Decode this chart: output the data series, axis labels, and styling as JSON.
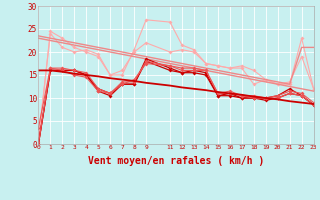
{
  "background_color": "#c8f0f0",
  "grid_color": "#aadddd",
  "xlabel": "Vent moyen/en rafales ( km/h )",
  "xlabel_color": "#cc0000",
  "xlabel_fontsize": 7,
  "xlim": [
    0,
    23
  ],
  "ylim": [
    0,
    30
  ],
  "yticks": [
    0,
    5,
    10,
    15,
    20,
    25,
    30
  ],
  "xticks": [
    0,
    1,
    2,
    3,
    4,
    5,
    6,
    7,
    8,
    9,
    11,
    12,
    13,
    14,
    15,
    16,
    17,
    18,
    19,
    20,
    21,
    22,
    23
  ],
  "x": [
    0,
    1,
    2,
    3,
    4,
    5,
    6,
    7,
    8,
    9,
    11,
    12,
    13,
    14,
    15,
    16,
    17,
    18,
    19,
    20,
    21,
    22,
    23
  ],
  "light1": [
    1,
    24,
    21,
    20,
    20.5,
    19.5,
    15,
    15,
    20.5,
    27,
    26.5,
    21.5,
    20.5,
    17.5,
    17,
    16.5,
    16.5,
    13,
    14,
    13,
    13,
    23,
    12
  ],
  "light2": [
    0.5,
    24.5,
    23,
    21,
    20,
    19,
    15,
    16,
    20,
    22,
    20,
    20.5,
    20,
    17.5,
    17,
    16.5,
    17,
    16,
    14,
    13,
    13.5,
    19,
    12
  ],
  "trend_upper1": [
    23,
    22.5,
    22,
    21.5,
    21,
    20.5,
    20,
    19.5,
    19,
    18.5,
    17.5,
    17,
    16.5,
    16,
    15.5,
    15,
    14.5,
    14,
    13.5,
    13,
    12.5,
    12,
    11.5
  ],
  "trend_upper2": [
    23.5,
    23,
    22.5,
    22,
    21.5,
    21,
    20.5,
    20,
    19.5,
    19,
    18,
    17.5,
    17,
    16.5,
    16,
    15.5,
    15,
    14.5,
    14,
    13.5,
    13,
    21,
    21
  ],
  "dark1": [
    0,
    16,
    16,
    16,
    15,
    11.5,
    10.5,
    13,
    13,
    18.5,
    16.5,
    15.5,
    16,
    15.5,
    10.5,
    11,
    10,
    10,
    10,
    10.5,
    12,
    10.5,
    8.5
  ],
  "dark2": [
    0,
    16,
    16,
    16,
    15,
    12,
    11,
    13,
    13,
    18,
    16,
    15.5,
    15.5,
    15,
    10.5,
    10.5,
    10,
    10,
    9.5,
    10,
    11,
    10.5,
    8.5
  ],
  "dark3": [
    0,
    16.5,
    16.5,
    16,
    15.5,
    12,
    11,
    13,
    14,
    17.5,
    17,
    16,
    16,
    16,
    11,
    11,
    10.5,
    10,
    10,
    10,
    11,
    10.5,
    8.5
  ],
  "trend_lower": [
    16,
    16,
    15.7,
    15.3,
    15,
    14.7,
    14.3,
    14,
    13.7,
    13.3,
    12.7,
    12.3,
    12,
    11.7,
    11.3,
    11,
    10.7,
    10.3,
    10,
    9.7,
    9.3,
    9,
    8.7
  ],
  "dark4": [
    3.5,
    16.5,
    16,
    15,
    14.5,
    11.5,
    11,
    13.5,
    13.5,
    18,
    17,
    16.5,
    16.5,
    16,
    11,
    11.5,
    10.5,
    10.5,
    10,
    10.5,
    11.5,
    11,
    9
  ],
  "color_dark": "#cc0000",
  "color_mid": "#ee5555",
  "color_light": "#ffaaaa",
  "color_trend_upper": "#ee8888"
}
